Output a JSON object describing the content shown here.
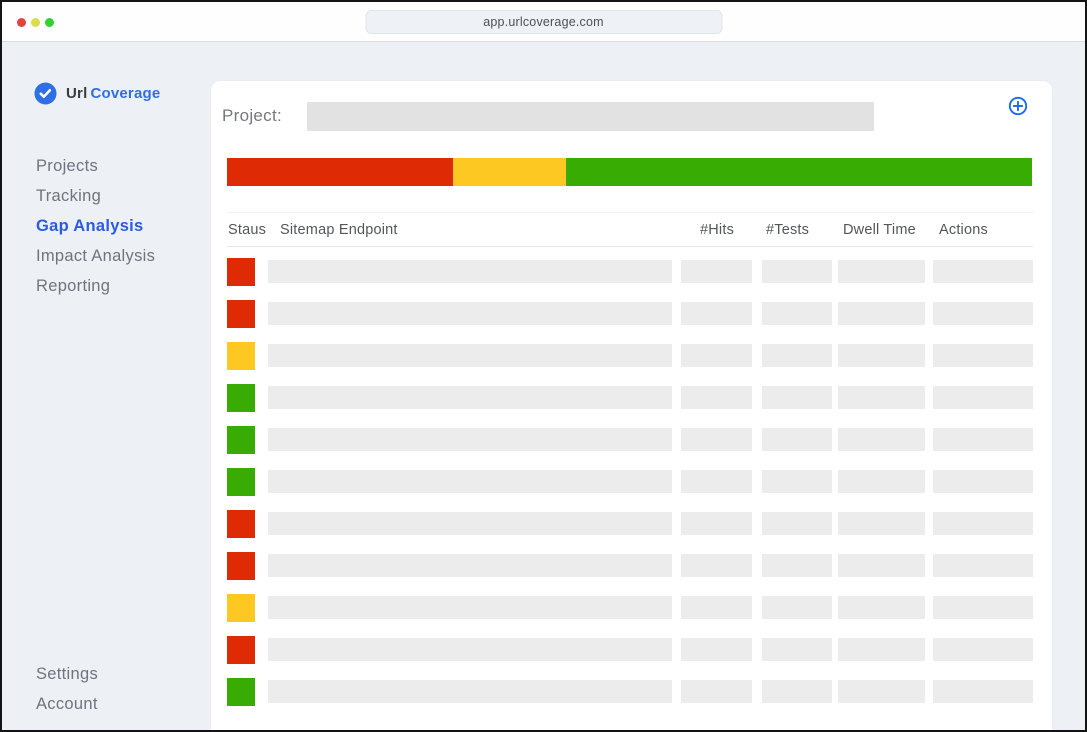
{
  "window": {
    "url_bar": "app.urlcoverage.com",
    "traffic_lights": [
      "#e0443c",
      "#d9de4b",
      "#32d033"
    ]
  },
  "brand": {
    "name_primary": "Url",
    "name_secondary": "Coverage",
    "badge_icon": "checkmark-circle-icon"
  },
  "sidebar": {
    "nav": [
      {
        "label": "Projects",
        "active": false
      },
      {
        "label": "Tracking",
        "active": false
      },
      {
        "label": "Gap Analysis",
        "active": true
      },
      {
        "label": "Impact Analysis",
        "active": false
      },
      {
        "label": "Reporting",
        "active": false
      }
    ],
    "footer_nav": [
      {
        "label": "Settings",
        "active": false
      },
      {
        "label": "Account",
        "active": false
      }
    ]
  },
  "main": {
    "project": {
      "label": "Project:",
      "value": "",
      "placeholder": "",
      "add_icon": "plus-circle-icon"
    },
    "coverage_bar": {
      "type": "stacked-bar",
      "segments": [
        {
          "status": "red",
          "percent": 28.1
        },
        {
          "status": "yellow",
          "percent": 14.0
        },
        {
          "status": "green",
          "percent": 57.9
        }
      ]
    },
    "table": {
      "columns": [
        "Staus",
        "Sitemap Endpoint",
        "#Hits",
        "#Tests",
        "Dwell Time",
        "Actions"
      ],
      "rows": [
        {
          "status": "red",
          "endpoint": "",
          "hits": "",
          "tests": "",
          "dwell_time": "",
          "actions": ""
        },
        {
          "status": "red",
          "endpoint": "",
          "hits": "",
          "tests": "",
          "dwell_time": "",
          "actions": ""
        },
        {
          "status": "yellow",
          "endpoint": "",
          "hits": "",
          "tests": "",
          "dwell_time": "",
          "actions": ""
        },
        {
          "status": "green",
          "endpoint": "",
          "hits": "",
          "tests": "",
          "dwell_time": "",
          "actions": ""
        },
        {
          "status": "green",
          "endpoint": "",
          "hits": "",
          "tests": "",
          "dwell_time": "",
          "actions": ""
        },
        {
          "status": "green",
          "endpoint": "",
          "hits": "",
          "tests": "",
          "dwell_time": "",
          "actions": ""
        },
        {
          "status": "red",
          "endpoint": "",
          "hits": "",
          "tests": "",
          "dwell_time": "",
          "actions": ""
        },
        {
          "status": "red",
          "endpoint": "",
          "hits": "",
          "tests": "",
          "dwell_time": "",
          "actions": ""
        },
        {
          "status": "yellow",
          "endpoint": "",
          "hits": "",
          "tests": "",
          "dwell_time": "",
          "actions": ""
        },
        {
          "status": "red",
          "endpoint": "",
          "hits": "",
          "tests": "",
          "dwell_time": "",
          "actions": ""
        },
        {
          "status": "green",
          "endpoint": "",
          "hits": "",
          "tests": "",
          "dwell_time": "",
          "actions": ""
        }
      ]
    }
  },
  "colors": {
    "status_red": "#df2a06",
    "status_yellow": "#fec822",
    "status_green": "#38ac02",
    "accent_blue": "#2e6fe6",
    "active_nav_blue": "#2a5ce0"
  }
}
